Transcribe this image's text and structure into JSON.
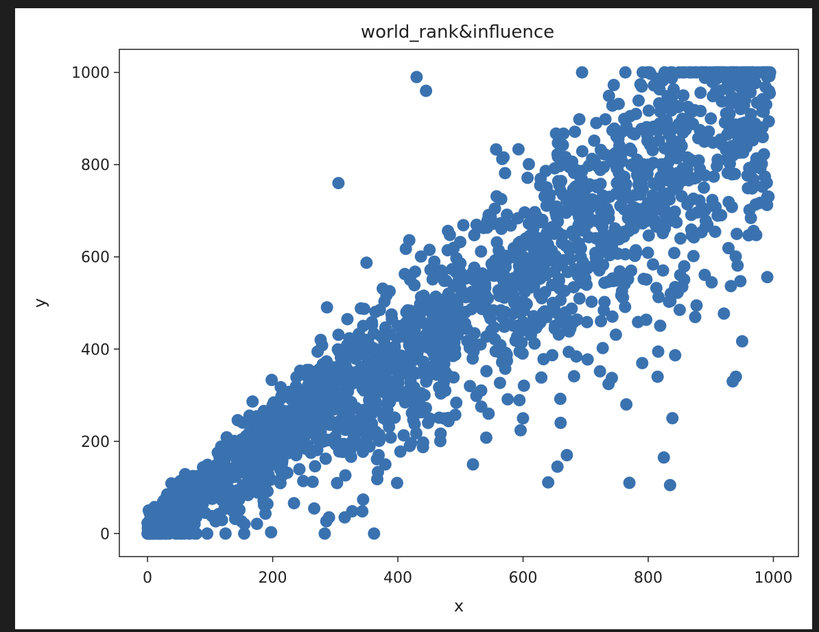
{
  "chart_data": {
    "type": "scatter",
    "title": "world_rank&influence",
    "xlabel": "x",
    "ylabel": "y",
    "xlim": [
      -45,
      1040
    ],
    "ylim": [
      -50,
      1050
    ],
    "xticks": [
      0,
      200,
      400,
      600,
      800,
      1000
    ],
    "yticks": [
      0,
      200,
      400,
      600,
      800,
      1000
    ],
    "grid": false,
    "marker_color": "#3a72b0",
    "point_count": 2200,
    "series": [
      {
        "points_note": "dense cloud along diagonal; representative samples plus notable outliers",
        "x": [
          0,
          5,
          10,
          15,
          20,
          30,
          40,
          50,
          60,
          80,
          100,
          120,
          150,
          180,
          210,
          250,
          300,
          350,
          400,
          450,
          500,
          550,
          600,
          650,
          700,
          750,
          800,
          850,
          900,
          950,
          990,
          430,
          445,
          305,
          770,
          835,
          825,
          655,
          670,
          520,
          380,
          290,
          940,
          935,
          815,
          765,
          660,
          600,
          545,
          315
        ],
        "y": [
          0,
          5,
          15,
          10,
          30,
          40,
          50,
          60,
          80,
          110,
          130,
          150,
          180,
          220,
          260,
          300,
          350,
          420,
          450,
          500,
          530,
          560,
          600,
          650,
          700,
          760,
          800,
          850,
          900,
          950,
          990,
          990,
          960,
          760,
          110,
          105,
          165,
          145,
          170,
          150,
          150,
          35,
          340,
          330,
          340,
          280,
          240,
          250,
          260,
          35
        ]
      }
    ]
  }
}
